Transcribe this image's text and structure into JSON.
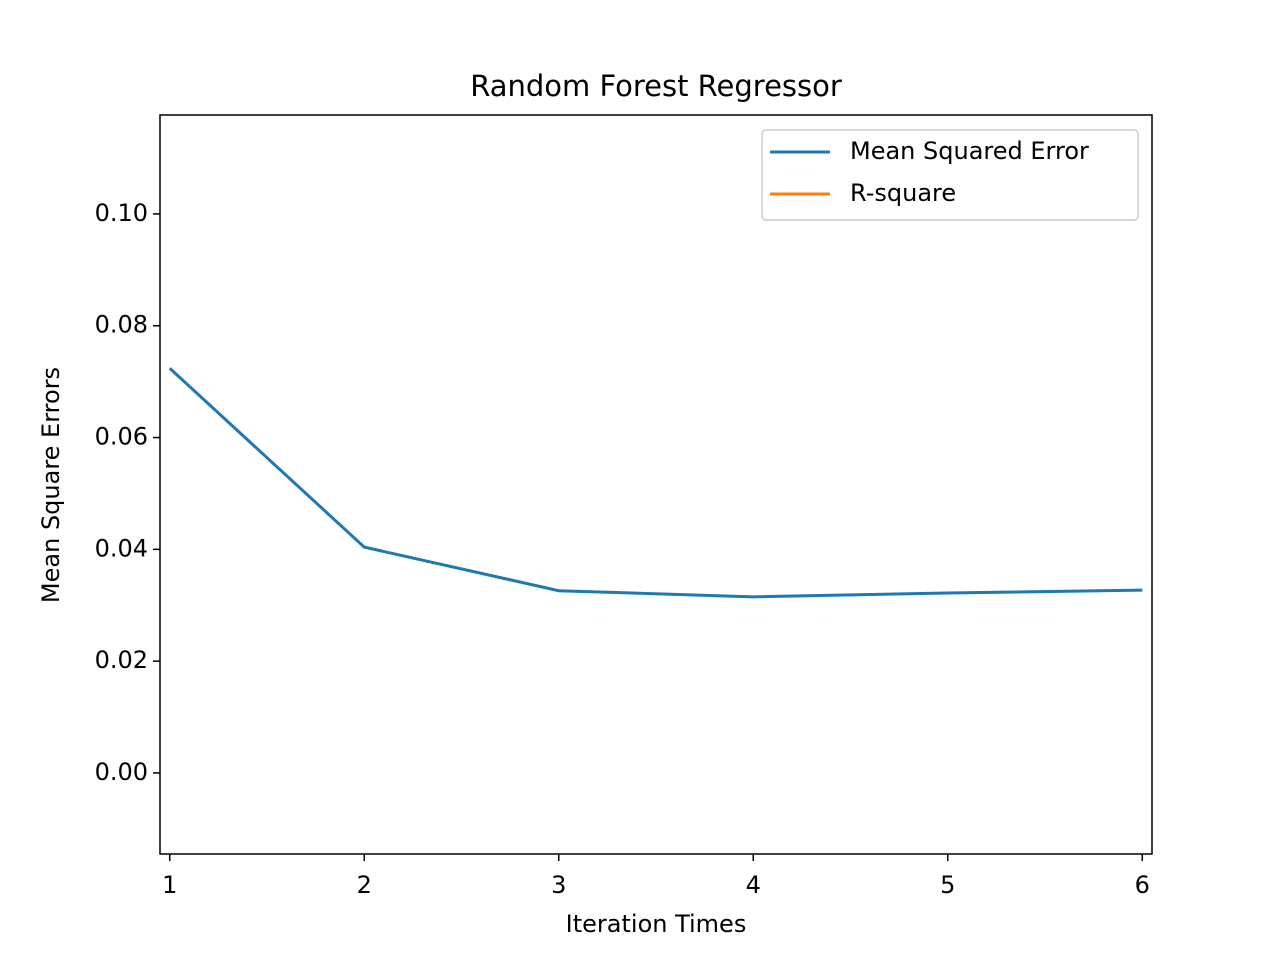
{
  "chart_data": {
    "type": "line",
    "title": "Random Forest Regressor",
    "x_label": "Iteration Times",
    "y_label": "Mean Square Errors",
    "x": [
      1,
      2,
      3,
      4,
      5,
      6
    ],
    "series": [
      {
        "name": "Mean Squared Error",
        "color": "#1f77b4",
        "values": [
          0.0724,
          0.0404,
          0.0326,
          0.0315,
          0.0322,
          0.0327
        ]
      },
      {
        "name": "R-square",
        "color": "#ff7f0e",
        "values": [
          null,
          null,
          null,
          null,
          null,
          null
        ]
      }
    ],
    "xlim": [
      0.95,
      6.05
    ],
    "xticks": [
      1,
      2,
      3,
      4,
      5,
      6
    ],
    "ylim": [
      -0.0145,
      0.1177
    ],
    "yticks": [
      {
        "value": 0,
        "label": "0.00"
      },
      {
        "value": 0.02,
        "label": "0.02"
      },
      {
        "value": 0.04,
        "label": "0.04"
      },
      {
        "value": 0.06,
        "label": "0.06"
      },
      {
        "value": 0.08,
        "label": "0.08"
      },
      {
        "value": 0.1,
        "label": "0.10"
      }
    ],
    "legend": "upper right",
    "grid": false
  }
}
